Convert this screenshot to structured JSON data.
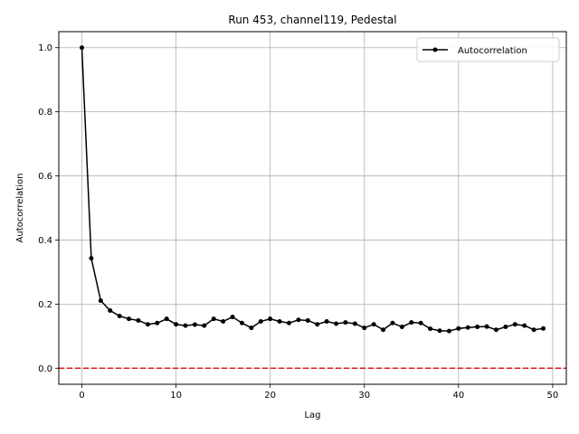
{
  "chart_data": {
    "type": "line",
    "title": "Run 453, channel119, Pedestal",
    "xlabel": "Lag",
    "ylabel": "Autocorrelation",
    "xlim": [
      -2.45,
      51.45
    ],
    "ylim": [
      -0.05,
      1.05
    ],
    "xticks": [
      0,
      10,
      20,
      30,
      40,
      50
    ],
    "yticks": [
      0.0,
      0.2,
      0.4,
      0.6,
      0.8,
      1.0
    ],
    "xtick_labels": [
      "0",
      "10",
      "20",
      "30",
      "40",
      "50"
    ],
    "ytick_labels": [
      "0.0",
      "0.2",
      "0.4",
      "0.6",
      "0.8",
      "1.0"
    ],
    "grid": true,
    "legend": {
      "position": "top-right",
      "entries": [
        "Autocorrelation"
      ]
    },
    "series": [
      {
        "name": "Autocorrelation",
        "color": "#000000",
        "marker": "circle",
        "x": [
          0,
          1,
          2,
          3,
          4,
          5,
          6,
          7,
          8,
          9,
          10,
          11,
          12,
          13,
          14,
          15,
          16,
          17,
          18,
          19,
          20,
          21,
          22,
          23,
          24,
          25,
          26,
          27,
          28,
          29,
          30,
          31,
          32,
          33,
          34,
          35,
          36,
          37,
          38,
          39,
          40,
          41,
          42,
          43,
          44,
          45,
          46,
          47,
          48,
          49
        ],
        "values": [
          1.0,
          0.343,
          0.211,
          0.18,
          0.163,
          0.154,
          0.149,
          0.137,
          0.141,
          0.154,
          0.137,
          0.133,
          0.136,
          0.133,
          0.154,
          0.146,
          0.16,
          0.141,
          0.126,
          0.146,
          0.154,
          0.146,
          0.141,
          0.151,
          0.149,
          0.137,
          0.146,
          0.139,
          0.143,
          0.139,
          0.126,
          0.137,
          0.12,
          0.141,
          0.129,
          0.143,
          0.141,
          0.123,
          0.117,
          0.116,
          0.124,
          0.127,
          0.129,
          0.13,
          0.12,
          0.129,
          0.137,
          0.133,
          0.12,
          0.124
        ]
      }
    ],
    "reference_line": {
      "y": 0.0,
      "color": "#e41a1c",
      "style": "dashed"
    }
  }
}
